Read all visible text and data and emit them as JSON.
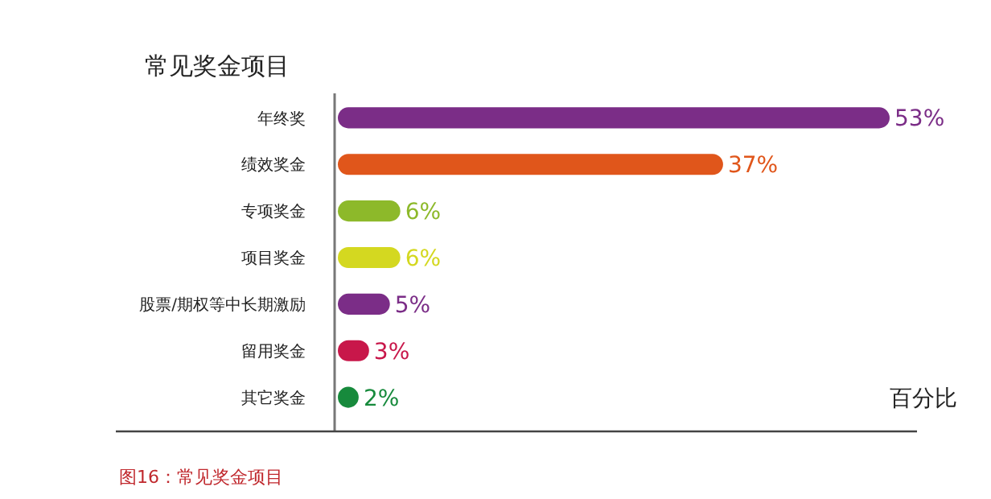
{
  "chart_data": {
    "type": "bar",
    "orientation": "horizontal",
    "title": "常见奖金项目",
    "xlabel": "百分比",
    "annotations": [
      "图16：常见奖金项目"
    ],
    "categories": [
      "年终奖",
      "绩效奖金",
      "专项奖金",
      "项目奖金",
      "股票/期权等中长期激励",
      "留用奖金",
      "其它奖金"
    ],
    "values": [
      53,
      37,
      6,
      6,
      5,
      3,
      2
    ],
    "colors": [
      "#7b2d87",
      "#e0561b",
      "#8db92a",
      "#d4d820",
      "#7b2d87",
      "#c8174a",
      "#178a3c"
    ],
    "value_labels": [
      "53%",
      "37%",
      "6%",
      "6%",
      "5%",
      "3%",
      "2%"
    ],
    "tick_labels": "y"
  }
}
